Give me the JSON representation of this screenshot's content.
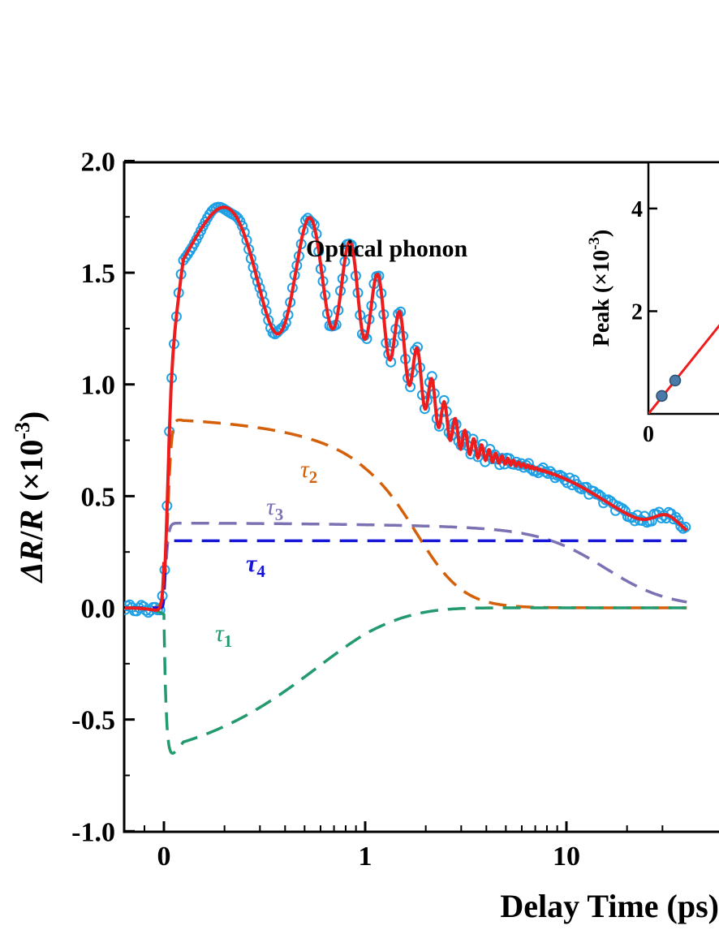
{
  "chart_data": {
    "type": "line",
    "xlabel": "Delay Time (ps)",
    "ylabel": "ΔR/R (×10⁻³)",
    "ylabel_parts": {
      "a": "ΔR",
      "slash": "/",
      "b": "R",
      "open": " (×10",
      "exp": "-3",
      "close": ")"
    },
    "xscale": "linear-then-log",
    "xlim": [
      -0.2,
      30
    ],
    "ylim": [
      -1.0,
      2.0
    ],
    "x_ticks": [
      {
        "value": 0,
        "label": "0"
      },
      {
        "value": 1,
        "label": "1"
      },
      {
        "value": 10,
        "label": "10"
      }
    ],
    "y_ticks": [
      {
        "value": -1.0,
        "label": "-1.0"
      },
      {
        "value": -0.5,
        "label": "-0.5"
      },
      {
        "value": 0.0,
        "label": "0.0"
      },
      {
        "value": 0.5,
        "label": "0.5"
      },
      {
        "value": 1.0,
        "label": "1.0"
      },
      {
        "value": 1.5,
        "label": "1.5"
      },
      {
        "value": 2.0,
        "label": "2.0"
      }
    ],
    "annotation": "Optical phonon",
    "series": [
      {
        "key": "data",
        "style": "open-circles",
        "color": "#1ea0e6"
      },
      {
        "key": "fit",
        "style": "solid",
        "color": "#ee1c1c"
      },
      {
        "key": "tau1",
        "label": "τ",
        "sub": "1",
        "style": "dashed",
        "color": "#229a6e"
      },
      {
        "key": "tau2",
        "label": "τ",
        "sub": "2",
        "style": "dashed",
        "color": "#d4600a"
      },
      {
        "key": "tau3",
        "label": "τ",
        "sub": "3",
        "style": "dashed",
        "color": "#7b72b4"
      },
      {
        "key": "tau4",
        "label": "τ",
        "sub": "4",
        "style": "dashed",
        "color": "#1616d8"
      }
    ],
    "inset": {
      "ylabel_parts": {
        "a": "Peak (×10",
        "exp": "-3",
        "close": ")"
      },
      "y_ticks": [
        {
          "value": 2,
          "label": "2"
        },
        {
          "value": 4,
          "label": "4"
        }
      ],
      "x_ticks": [
        {
          "value": 0,
          "label": "0"
        }
      ],
      "ylim": [
        0,
        4.9
      ],
      "points": [
        {
          "x": 0.5,
          "y": 0.35
        },
        {
          "x": 1.0,
          "y": 0.65
        }
      ],
      "fit_slope": 0.65,
      "point_color": "#4a7aa8",
      "fit_color": "#ee1c1c"
    }
  }
}
